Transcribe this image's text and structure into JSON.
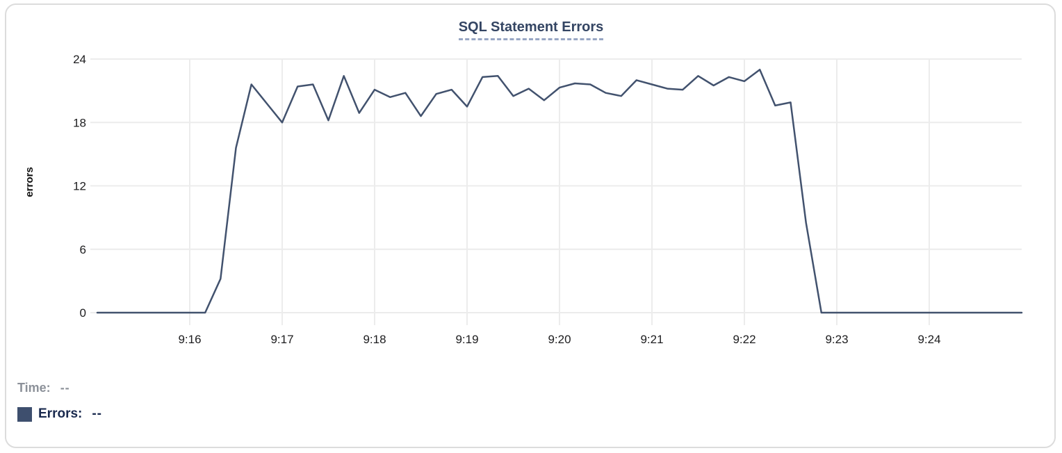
{
  "chart": {
    "title": "SQL Statement Errors",
    "y_axis_label": "errors"
  },
  "tooltip": {
    "time_label": "Time:",
    "time_value": "--",
    "errors_label": "Errors:",
    "errors_value": "--"
  },
  "colors": {
    "series_line": "#42526e",
    "legend_swatch": "#3e4f6e",
    "title_text": "#344563",
    "title_underline": "#98a7c4",
    "gridline": "#ececec",
    "axis_text": "#1c1c1e",
    "muted_text": "#8c9199",
    "dark_text": "#19294e",
    "card_border": "#dcdcdc"
  },
  "chart_data": {
    "type": "line",
    "title": "SQL Statement Errors",
    "xlabel": "",
    "ylabel": "errors",
    "ylim": [
      0,
      24
    ],
    "y_ticks": [
      0,
      6,
      12,
      18,
      24
    ],
    "x_tick_labels": [
      "9:16",
      "9:17",
      "9:18",
      "9:19",
      "9:20",
      "9:21",
      "9:22",
      "9:23",
      "9:24"
    ],
    "x_range": [
      "9:15:00",
      "9:25:00"
    ],
    "interval_seconds": 10,
    "grid": true,
    "legend_position": "bottom-left",
    "series_name": "Errors",
    "points": [
      {
        "time": "9:15:00",
        "value": 0
      },
      {
        "time": "9:15:10",
        "value": 0
      },
      {
        "time": "9:15:20",
        "value": 0
      },
      {
        "time": "9:15:30",
        "value": 0
      },
      {
        "time": "9:15:40",
        "value": 0
      },
      {
        "time": "9:15:50",
        "value": 0
      },
      {
        "time": "9:16:00",
        "value": 0
      },
      {
        "time": "9:16:10",
        "value": 0
      },
      {
        "time": "9:16:20",
        "value": 3.2
      },
      {
        "time": "9:16:30",
        "value": 15.6
      },
      {
        "time": "9:16:40",
        "value": 21.6
      },
      {
        "time": "9:16:50",
        "value": 19.8
      },
      {
        "time": "9:17:00",
        "value": 18.0
      },
      {
        "time": "9:17:10",
        "value": 21.4
      },
      {
        "time": "9:17:20",
        "value": 21.6
      },
      {
        "time": "9:17:30",
        "value": 18.2
      },
      {
        "time": "9:17:40",
        "value": 22.4
      },
      {
        "time": "9:17:50",
        "value": 18.9
      },
      {
        "time": "9:18:00",
        "value": 21.1
      },
      {
        "time": "9:18:10",
        "value": 20.4
      },
      {
        "time": "9:18:20",
        "value": 20.8
      },
      {
        "time": "9:18:30",
        "value": 18.6
      },
      {
        "time": "9:18:40",
        "value": 20.7
      },
      {
        "time": "9:18:50",
        "value": 21.1
      },
      {
        "time": "9:19:00",
        "value": 19.5
      },
      {
        "time": "9:19:10",
        "value": 22.3
      },
      {
        "time": "9:19:20",
        "value": 22.4
      },
      {
        "time": "9:19:30",
        "value": 20.5
      },
      {
        "time": "9:19:40",
        "value": 21.2
      },
      {
        "time": "9:19:50",
        "value": 20.1
      },
      {
        "time": "9:20:00",
        "value": 21.3
      },
      {
        "time": "9:20:10",
        "value": 21.7
      },
      {
        "time": "9:20:20",
        "value": 21.6
      },
      {
        "time": "9:20:30",
        "value": 20.8
      },
      {
        "time": "9:20:40",
        "value": 20.5
      },
      {
        "time": "9:20:50",
        "value": 22.0
      },
      {
        "time": "9:21:00",
        "value": 21.6
      },
      {
        "time": "9:21:10",
        "value": 21.2
      },
      {
        "time": "9:21:20",
        "value": 21.1
      },
      {
        "time": "9:21:30",
        "value": 22.4
      },
      {
        "time": "9:21:40",
        "value": 21.5
      },
      {
        "time": "9:21:50",
        "value": 22.3
      },
      {
        "time": "9:22:00",
        "value": 21.9
      },
      {
        "time": "9:22:10",
        "value": 23.0
      },
      {
        "time": "9:22:20",
        "value": 19.6
      },
      {
        "time": "9:22:30",
        "value": 19.9
      },
      {
        "time": "9:22:40",
        "value": 8.5
      },
      {
        "time": "9:22:50",
        "value": 0
      },
      {
        "time": "9:23:00",
        "value": 0
      },
      {
        "time": "9:23:10",
        "value": 0
      },
      {
        "time": "9:23:20",
        "value": 0
      },
      {
        "time": "9:23:30",
        "value": 0
      },
      {
        "time": "9:23:40",
        "value": 0
      },
      {
        "time": "9:23:50",
        "value": 0
      },
      {
        "time": "9:24:00",
        "value": 0
      },
      {
        "time": "9:24:10",
        "value": 0
      },
      {
        "time": "9:24:20",
        "value": 0
      },
      {
        "time": "9:24:30",
        "value": 0
      },
      {
        "time": "9:24:40",
        "value": 0
      },
      {
        "time": "9:24:50",
        "value": 0
      },
      {
        "time": "9:25:00",
        "value": 0
      }
    ]
  }
}
